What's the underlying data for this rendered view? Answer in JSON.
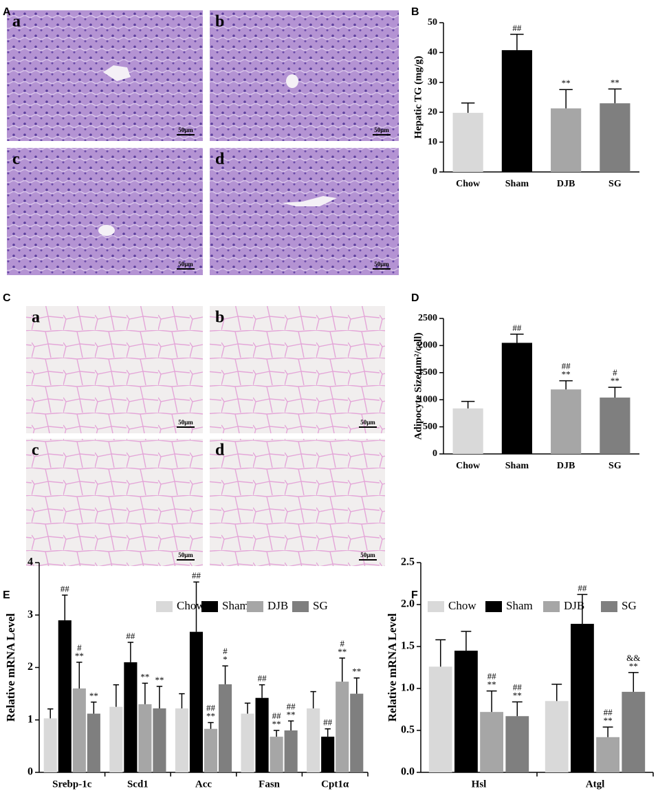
{
  "panel_labels": [
    "A",
    "B",
    "C",
    "D",
    "E",
    "F"
  ],
  "he_images": {
    "labels": [
      "a",
      "b",
      "c",
      "d"
    ],
    "scale_bar": "50μm"
  },
  "adipose_images": {
    "labels": [
      "a",
      "b",
      "c",
      "d"
    ],
    "scale_bar": "50μm"
  },
  "chart_data": [
    {
      "type": "bar",
      "y_label": "Hepatic TG (mg/g)",
      "categories": [
        "Chow",
        "Sham",
        "DJB",
        "SG"
      ],
      "values": [
        19.8,
        40.8,
        21.3,
        23.0
      ],
      "errors": [
        3.3,
        5.3,
        6.3,
        4.8
      ],
      "colors": [
        "#d9d9d9",
        "#000000",
        "#a6a6a6",
        "#7f7f7f"
      ],
      "annotations": [
        null,
        [
          "##"
        ],
        [
          "**"
        ],
        [
          "**"
        ]
      ],
      "ylim": [
        0,
        50
      ],
      "yticks": [
        0,
        10,
        20,
        30,
        40,
        50
      ]
    },
    {
      "type": "bar",
      "y_label": "Adipocyte Size(μm²/cell)",
      "categories": [
        "Chow",
        "Sham",
        "DJB",
        "SG"
      ],
      "values": [
        840,
        2050,
        1190,
        1040
      ],
      "errors": [
        130,
        160,
        160,
        190
      ],
      "colors": [
        "#d9d9d9",
        "#000000",
        "#a6a6a6",
        "#7f7f7f"
      ],
      "annotations": [
        null,
        [
          "##"
        ],
        [
          "##",
          "**"
        ],
        [
          "#",
          "**"
        ]
      ],
      "ylim": [
        0,
        2500
      ],
      "yticks": [
        0,
        500,
        1000,
        1500,
        2000,
        2500
      ]
    },
    {
      "type": "bar",
      "y_label": "Relative mRNA Level",
      "categories": [
        "Srebp-1c",
        "Scd1",
        "Acc",
        "Fasn",
        "Cpt1α"
      ],
      "series": [
        {
          "name": "Chow",
          "color": "#d9d9d9",
          "values": [
            1.03,
            1.25,
            1.22,
            1.12,
            1.22
          ],
          "errors": [
            0.18,
            0.42,
            0.28,
            0.2,
            0.32
          ],
          "annotations": [
            null,
            null,
            null,
            null,
            null
          ]
        },
        {
          "name": "Sham",
          "color": "#000000",
          "values": [
            2.9,
            2.1,
            2.68,
            1.42,
            0.68
          ],
          "errors": [
            0.48,
            0.38,
            0.95,
            0.25,
            0.15
          ],
          "annotations": [
            [
              "##"
            ],
            [
              "##"
            ],
            [
              "##"
            ],
            [
              "##"
            ],
            [
              "##"
            ]
          ]
        },
        {
          "name": "DJB",
          "color": "#a6a6a6",
          "values": [
            1.6,
            1.3,
            0.83,
            0.68,
            1.73
          ],
          "errors": [
            0.5,
            0.4,
            0.12,
            0.12,
            0.45
          ],
          "annotations": [
            [
              "#",
              "**"
            ],
            [
              "**"
            ],
            [
              "##",
              "**"
            ],
            [
              "##",
              "**"
            ],
            [
              "#",
              "**"
            ]
          ]
        },
        {
          "name": "SG",
          "color": "#7f7f7f",
          "values": [
            1.12,
            1.22,
            1.68,
            0.8,
            1.5
          ],
          "errors": [
            0.22,
            0.42,
            0.35,
            0.18,
            0.3
          ],
          "annotations": [
            [
              "**"
            ],
            [
              "**"
            ],
            [
              "#",
              "*"
            ],
            [
              "##",
              "**"
            ],
            [
              "**"
            ]
          ]
        }
      ],
      "ylim": [
        0,
        4
      ],
      "yticks": [
        0,
        1,
        2,
        3,
        4
      ]
    },
    {
      "type": "bar",
      "y_label": "Relative mRNA Level",
      "categories": [
        "Hsl",
        "Atgl"
      ],
      "series": [
        {
          "name": "Chow",
          "color": "#d9d9d9",
          "values": [
            1.26,
            0.85
          ],
          "errors": [
            0.32,
            0.2
          ],
          "annotations": [
            null,
            null
          ]
        },
        {
          "name": "Sham",
          "color": "#000000",
          "values": [
            1.45,
            1.77
          ],
          "errors": [
            0.23,
            0.35
          ],
          "annotations": [
            null,
            [
              "##"
            ]
          ]
        },
        {
          "name": "DJB",
          "color": "#a6a6a6",
          "values": [
            0.72,
            0.42
          ],
          "errors": [
            0.25,
            0.12
          ],
          "annotations": [
            [
              "##",
              "**"
            ],
            [
              "##",
              "**"
            ]
          ]
        },
        {
          "name": "SG",
          "color": "#7f7f7f",
          "values": [
            0.67,
            0.96
          ],
          "errors": [
            0.17,
            0.23
          ],
          "annotations": [
            [
              "##",
              "**"
            ],
            [
              "&&",
              "**"
            ]
          ]
        }
      ],
      "ylim": [
        0,
        2.5
      ],
      "yticks": [
        {
          "value": 0,
          "label": "0.0"
        },
        0.5,
        {
          "value": 1,
          "label": "1.0"
        },
        1.5,
        {
          "value": 2,
          "label": "2.0"
        },
        2.5
      ]
    }
  ]
}
